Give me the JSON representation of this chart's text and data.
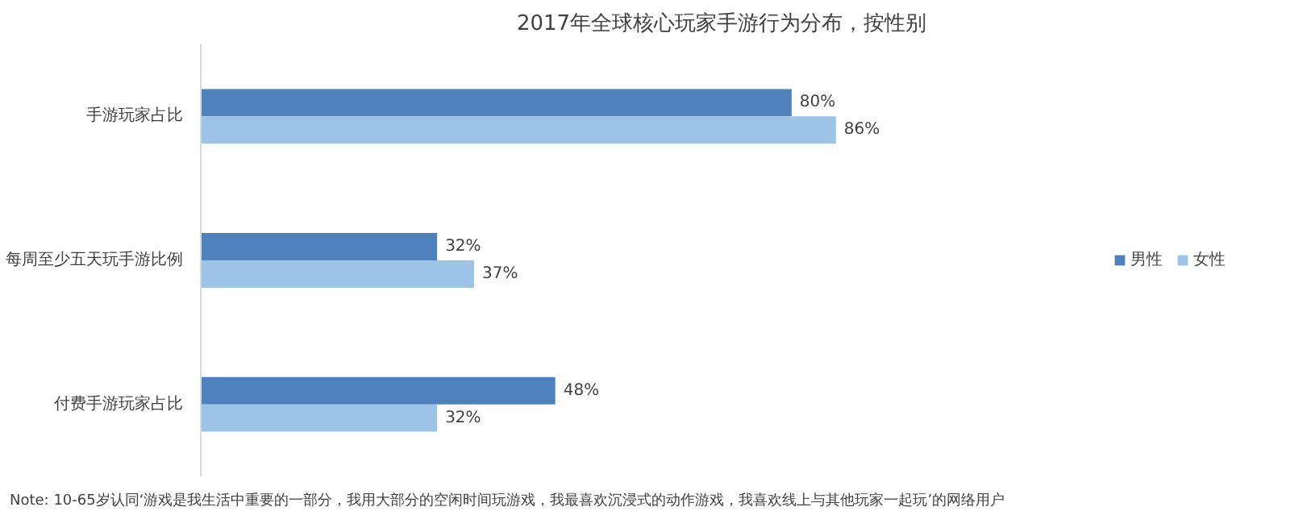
{
  "chart_data": {
    "type": "bar",
    "orientation": "horizontal",
    "title": "2017年全球核心玩家手游行为分布，按性别",
    "categories": [
      "手游玩家占比",
      "每周至少五天玩手游比例",
      "付费手游玩家占比"
    ],
    "series": [
      {
        "name": "男性",
        "color": "#4f81bd",
        "values": [
          80,
          32,
          48
        ],
        "value_labels": [
          "80%",
          "32%",
          "48%"
        ]
      },
      {
        "name": "女性",
        "color": "#9dc3e6",
        "values": [
          86,
          37,
          32
        ],
        "value_labels": [
          "86%",
          "37%",
          "32%"
        ]
      }
    ],
    "legend": "right",
    "grid": false,
    "annotations": [
      "Note: 10-65岁认同‘游戏是我生活中重要的一部分，我用大部分的空闲时间玩游戏，我最喜欢沉浸式的动作游戏，我喜欢线上与其他玩家一起玩’的网络用户"
    ]
  }
}
